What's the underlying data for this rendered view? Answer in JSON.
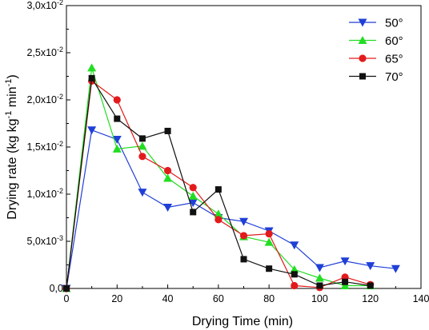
{
  "chart_data": {
    "type": "line",
    "xlabel": "Drying Time (min)",
    "ylabel": {
      "base": "Drying rate (kg kg",
      "sup1": "-1",
      "mid": " min",
      "sup2": "-1",
      "end": ")"
    },
    "xlim": [
      0,
      140
    ],
    "ylim": [
      0,
      0.03
    ],
    "x_ticks": [
      0,
      20,
      40,
      60,
      80,
      100,
      120,
      140
    ],
    "y_ticks": [
      {
        "value": 0,
        "mantissa": "0,0",
        "exponent": ""
      },
      {
        "value": 0.005,
        "mantissa": "5,0x10",
        "exponent": "-3"
      },
      {
        "value": 0.01,
        "mantissa": "1,0x10",
        "exponent": "-2"
      },
      {
        "value": 0.015,
        "mantissa": "1,5x10",
        "exponent": "-2"
      },
      {
        "value": 0.02,
        "mantissa": "2,0x10",
        "exponent": "-2"
      },
      {
        "value": 0.025,
        "mantissa": "2,5x10",
        "exponent": "-2"
      },
      {
        "value": 0.03,
        "mantissa": "3,0x10",
        "exponent": "-2"
      }
    ],
    "grid": false,
    "legend_position": "top-right",
    "series": [
      {
        "name": "50°",
        "color": "#1f3fd6",
        "marker": "triangle-down",
        "x": [
          0,
          10,
          20,
          30,
          40,
          50,
          60,
          70,
          80,
          90,
          100,
          110,
          120,
          130
        ],
        "y": [
          0.0,
          0.0168,
          0.0158,
          0.0102,
          0.0086,
          0.0091,
          0.0075,
          0.0071,
          0.0061,
          0.0046,
          0.0022,
          0.0029,
          0.0024,
          0.0021
        ]
      },
      {
        "name": "60°",
        "color": "#22dd22",
        "marker": "triangle-up",
        "x": [
          0,
          10,
          20,
          30,
          40,
          50,
          60,
          70,
          80,
          90,
          100,
          110,
          120
        ],
        "y": [
          0.0,
          0.0234,
          0.0148,
          0.0151,
          0.0117,
          0.0098,
          0.0079,
          0.0055,
          0.0049,
          0.002,
          0.0011,
          0.0003,
          0.0003
        ]
      },
      {
        "name": "65°",
        "color": "#e31a1c",
        "marker": "circle",
        "x": [
          0,
          10,
          20,
          30,
          40,
          50,
          60,
          70,
          80,
          90,
          100,
          110,
          120
        ],
        "y": [
          0.0,
          0.022,
          0.02,
          0.014,
          0.0125,
          0.0107,
          0.0073,
          0.0056,
          0.0058,
          0.0003,
          0.0001,
          0.0012,
          0.0004
        ]
      },
      {
        "name": "70°",
        "color": "#111111",
        "marker": "square",
        "x": [
          0,
          10,
          20,
          30,
          40,
          50,
          60,
          70,
          80,
          90,
          100,
          110,
          120
        ],
        "y": [
          0.0,
          0.0223,
          0.018,
          0.0159,
          0.0167,
          0.0081,
          0.0105,
          0.0031,
          0.0021,
          0.0015,
          0.0003,
          0.0007,
          0.0003
        ]
      }
    ]
  }
}
